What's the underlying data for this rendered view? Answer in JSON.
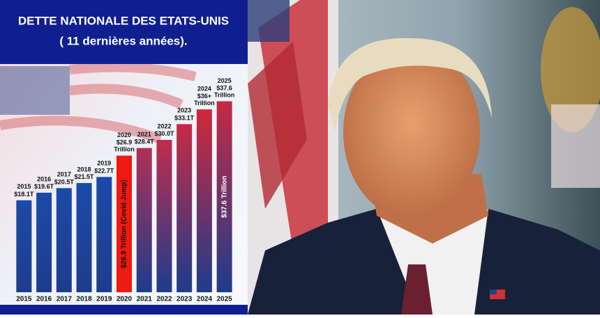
{
  "chart_data": {
    "type": "bar",
    "title": "DETTE NATIONALE DES ETATS-UNIS",
    "subtitle": "( 11 dernières années).",
    "categories": [
      "2015",
      "2016",
      "2017",
      "2018",
      "2019",
      "2020",
      "2021",
      "2022",
      "2023",
      "2024",
      "2025"
    ],
    "values": [
      18.1,
      19.6,
      20.5,
      21.5,
      22.7,
      26.9,
      28.4,
      30.0,
      33.1,
      36,
      37.6
    ],
    "value_labels": [
      "$18.1T",
      "$19.6T",
      "$20.5T",
      "$21.5T",
      "$22.7T",
      "$26.9 Trillion",
      "$28.4T",
      "$30.0T",
      "$33.1T",
      "$36+ Trillion",
      "$37.6 Trillion"
    ],
    "colors": [
      "#1c4aa8",
      "#1c4aa8",
      "#1c4aa8",
      "#1c4aa8",
      "#1c4aa8",
      "#f01a10",
      "#b03057",
      "#c02c4c",
      "#c82a44",
      "#d0283c",
      "#c42a44"
    ],
    "annotations": [
      {
        "index": 5,
        "text": "$26.9 Trillion (Covid Jump)"
      },
      {
        "index": 10,
        "text": "$37.6 Trillion"
      }
    ],
    "ylim": [
      0,
      40
    ]
  }
}
